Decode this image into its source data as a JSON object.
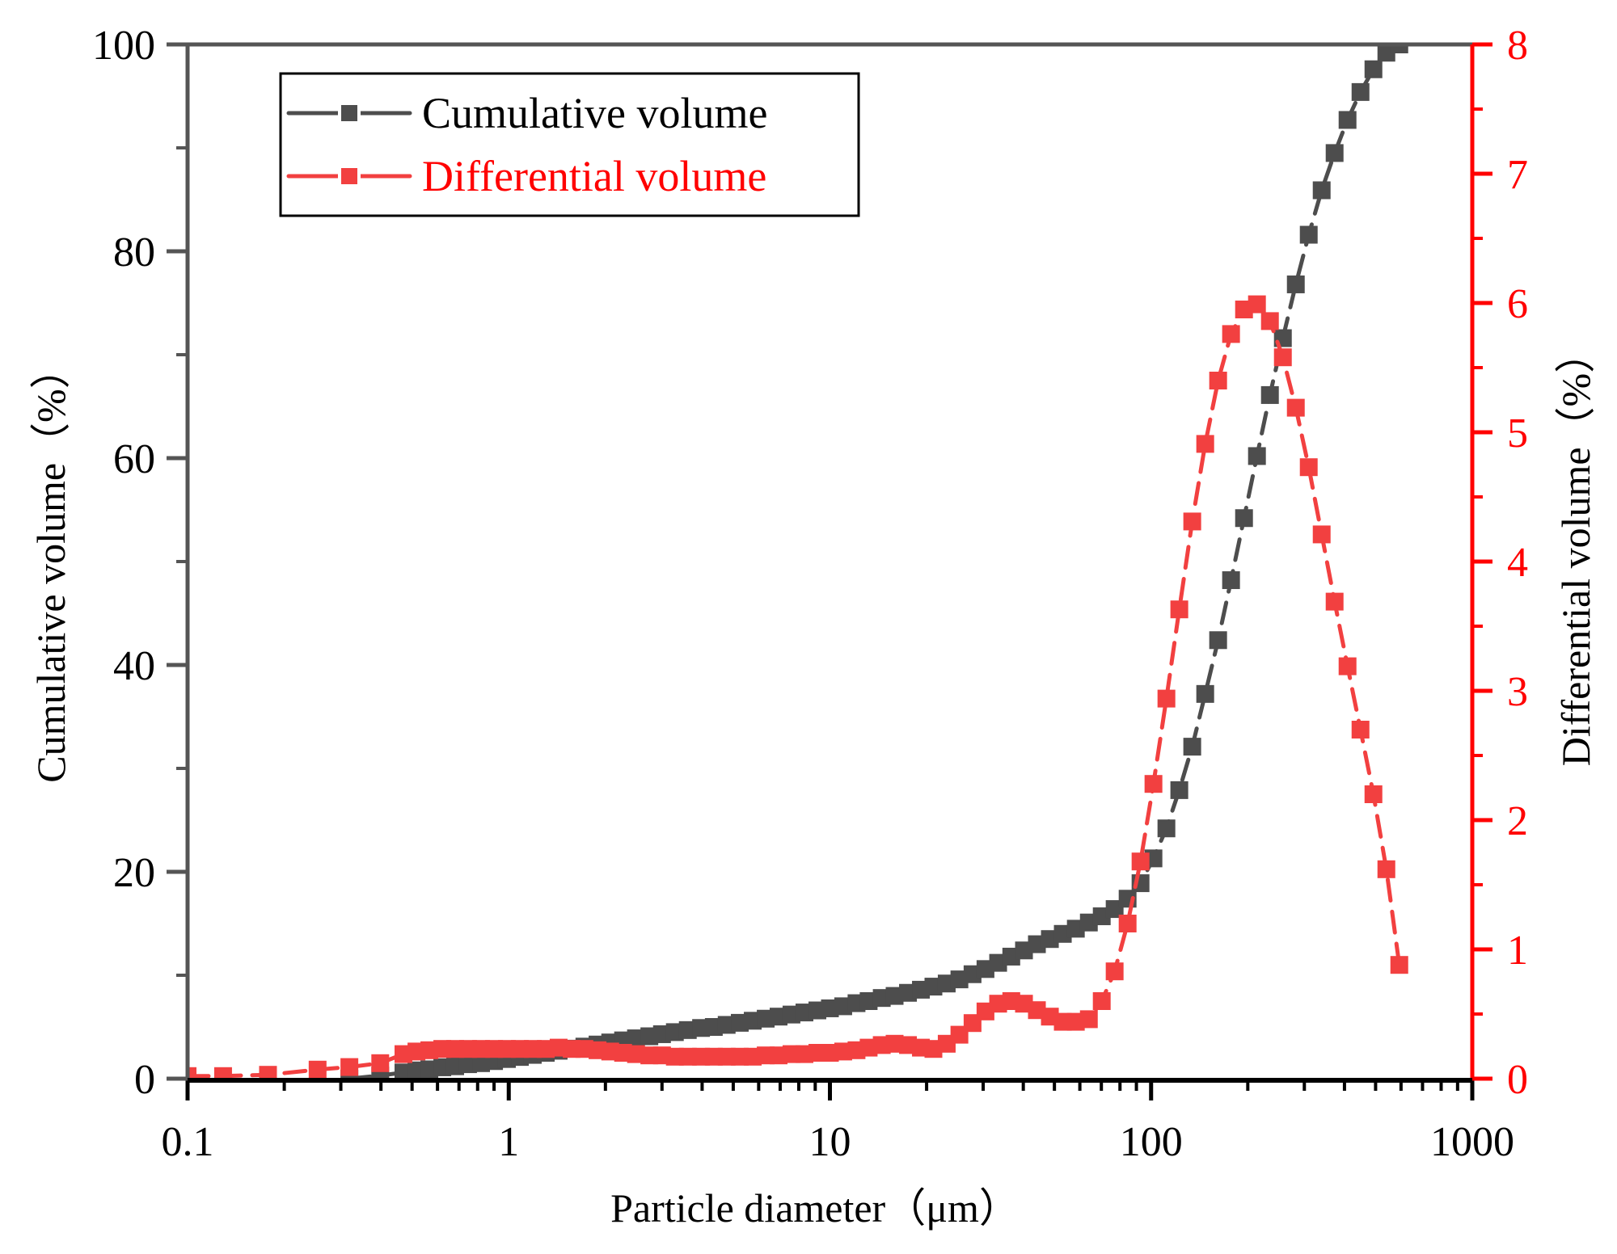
{
  "chart_data": {
    "type": "line",
    "title": "",
    "xlabel": "Particle diameter（μm）",
    "ylabel": "Cumulative volume（%）",
    "y2label": "Differential volume（%）",
    "xscale": "log",
    "xlim": [
      0.1,
      1000
    ],
    "ylim": [
      0,
      100
    ],
    "y2lim": [
      0,
      8
    ],
    "grid": false,
    "legend_position": "top-left",
    "x_ticks": [
      0.1,
      1,
      10,
      100,
      1000
    ],
    "x_tick_labels": [
      "0.1",
      "1",
      "10",
      "100",
      "1000"
    ],
    "y_ticks": [
      0,
      20,
      40,
      60,
      80,
      100
    ],
    "y_tick_labels": [
      "0",
      "20",
      "40",
      "60",
      "80",
      "100"
    ],
    "y2_ticks": [
      0,
      1,
      2,
      3,
      4,
      5,
      6,
      7,
      8
    ],
    "y2_tick_labels": [
      "0",
      "1",
      "2",
      "3",
      "4",
      "5",
      "6",
      "7",
      "8"
    ],
    "colors": {
      "cumulative": "#4d4d4d",
      "differential": "#f24040",
      "right_axis": "#ff0000",
      "left_axis": "#555555",
      "x_axis": "#000000"
    },
    "series": [
      {
        "name": "Cumulative volume",
        "axis": "left",
        "marker": "square",
        "line": "dash",
        "x": [
          0.319,
          0.398,
          0.47,
          0.516,
          0.566,
          0.621,
          0.681,
          0.747,
          0.82,
          0.9,
          0.987,
          1.083,
          1.188,
          1.304,
          1.43,
          1.57,
          1.72,
          1.89,
          2.07,
          2.27,
          2.49,
          2.74,
          3.0,
          3.29,
          3.61,
          3.97,
          4.35,
          4.77,
          5.24,
          5.75,
          6.31,
          6.92,
          7.59,
          8.33,
          9.14,
          10.0,
          11.0,
          12.1,
          13.2,
          14.5,
          15.9,
          17.5,
          19.2,
          21.0,
          23.1,
          25.3,
          27.8,
          30.5,
          33.4,
          36.7,
          40.2,
          44.1,
          48.4,
          53.1,
          58.3,
          64.0,
          70.2,
          77.0,
          84.5,
          92.7,
          101.7,
          111.6,
          122.4,
          134.3,
          147.4,
          161.7,
          177.4,
          194.7,
          213.6,
          234.4,
          257.2,
          282.2,
          309.6,
          339.7,
          372.7,
          408.9,
          448.7,
          492.3,
          540.1,
          592.6
        ],
        "values": [
          0.0,
          0.3,
          0.6,
          0.8,
          0.9,
          1.1,
          1.2,
          1.4,
          1.5,
          1.7,
          1.9,
          2.1,
          2.3,
          2.5,
          2.7,
          2.9,
          3.1,
          3.3,
          3.5,
          3.7,
          3.9,
          4.1,
          4.3,
          4.5,
          4.7,
          4.9,
          5.0,
          5.2,
          5.4,
          5.6,
          5.8,
          6.0,
          6.2,
          6.4,
          6.6,
          6.8,
          7.0,
          7.3,
          7.5,
          7.8,
          8.0,
          8.3,
          8.6,
          8.9,
          9.2,
          9.6,
          10.1,
          10.6,
          11.2,
          11.8,
          12.4,
          13.0,
          13.5,
          14.0,
          14.5,
          15.1,
          15.7,
          16.4,
          17.4,
          18.9,
          21.3,
          24.2,
          27.9,
          32.1,
          37.2,
          42.4,
          48.2,
          54.2,
          60.2,
          66.1,
          71.6,
          76.8,
          81.6,
          85.9,
          89.5,
          92.7,
          95.4,
          97.6,
          99.2,
          100.0
        ]
      },
      {
        "name": "Differential volume",
        "axis": "right",
        "marker": "square",
        "line": "dash",
        "x": [
          0.1,
          0.129,
          0.178,
          0.254,
          0.319,
          0.398,
          0.47,
          0.516,
          0.566,
          0.621,
          0.681,
          0.747,
          0.82,
          0.9,
          0.987,
          1.083,
          1.188,
          1.304,
          1.43,
          1.57,
          1.72,
          1.89,
          2.07,
          2.27,
          2.49,
          2.74,
          3.0,
          3.29,
          3.61,
          3.97,
          4.35,
          4.77,
          5.24,
          5.75,
          6.31,
          6.92,
          7.59,
          8.33,
          9.14,
          10.0,
          11.0,
          12.1,
          13.2,
          14.5,
          15.9,
          17.5,
          19.2,
          21.0,
          23.1,
          25.3,
          27.8,
          30.5,
          33.4,
          36.7,
          40.2,
          44.1,
          48.4,
          53.1,
          58.3,
          64.0,
          70.2,
          77.0,
          84.5,
          92.7,
          101.7,
          111.6,
          122.4,
          134.3,
          147.4,
          161.7,
          177.4,
          194.7,
          213.6,
          234.4,
          257.2,
          282.2,
          309.6,
          339.7,
          372.7,
          408.9,
          448.7,
          492.3,
          540.1,
          592.6
        ],
        "values": [
          0.02,
          0.02,
          0.03,
          0.07,
          0.09,
          0.12,
          0.19,
          0.21,
          0.22,
          0.23,
          0.23,
          0.23,
          0.23,
          0.23,
          0.23,
          0.23,
          0.23,
          0.23,
          0.24,
          0.23,
          0.23,
          0.22,
          0.21,
          0.2,
          0.19,
          0.18,
          0.18,
          0.17,
          0.17,
          0.17,
          0.17,
          0.17,
          0.17,
          0.17,
          0.18,
          0.18,
          0.19,
          0.19,
          0.2,
          0.2,
          0.21,
          0.22,
          0.24,
          0.26,
          0.27,
          0.26,
          0.24,
          0.23,
          0.27,
          0.34,
          0.43,
          0.52,
          0.58,
          0.6,
          0.58,
          0.53,
          0.48,
          0.44,
          0.44,
          0.46,
          0.6,
          0.83,
          1.2,
          1.68,
          2.28,
          2.94,
          3.63,
          4.31,
          4.91,
          5.4,
          5.76,
          5.95,
          5.99,
          5.86,
          5.58,
          5.19,
          4.73,
          4.21,
          3.69,
          3.19,
          2.7,
          2.2,
          1.62,
          0.88
        ]
      }
    ]
  }
}
